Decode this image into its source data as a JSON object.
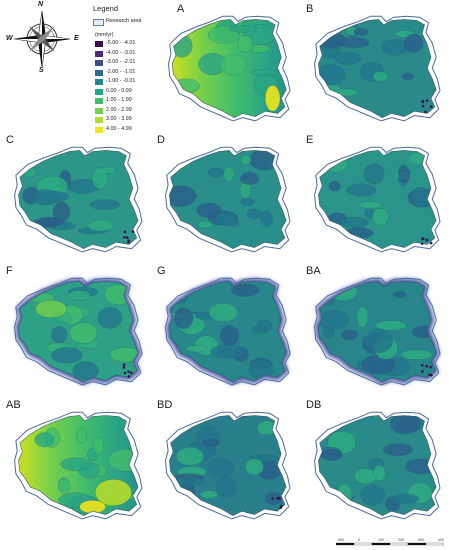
{
  "compass": {
    "n": "N",
    "s": "S",
    "e": "E",
    "w": "W"
  },
  "legend": {
    "title": "Legend",
    "research_area": "Research area",
    "unit": "(mm/yr)",
    "classes": [
      {
        "label": "-5.00 - -4.01",
        "color": "#3b0f4f"
      },
      {
        "label": "-4.00 - -3.01",
        "color": "#472a7a"
      },
      {
        "label": "-3.00 - -2.01",
        "color": "#3e4c8a"
      },
      {
        "label": "-2.00 - -1.01",
        "color": "#2f6b8e"
      },
      {
        "label": "-1.00 - -0.01",
        "color": "#22888e"
      },
      {
        "label": "0.00 - 0.99",
        "color": "#21a884"
      },
      {
        "label": "1.00 - 1.99",
        "color": "#41bd6b"
      },
      {
        "label": "2.00 - 2.99",
        "color": "#75cf4b"
      },
      {
        "label": "3.00 - 3.99",
        "color": "#b3dc2b"
      },
      {
        "label": "4.00 - 4.99",
        "color": "#f0e51c"
      }
    ]
  },
  "panels": [
    {
      "label": "A",
      "fill": "#2e9c84",
      "style": "gradientA"
    },
    {
      "label": "B",
      "fill": "#2a8a8a",
      "style": "plain"
    },
    {
      "label": "C",
      "fill": "#2c9688",
      "style": "plain"
    },
    {
      "label": "D",
      "fill": "#2a8e8a",
      "style": "plain"
    },
    {
      "label": "E",
      "fill": "#2a938a",
      "style": "plain"
    },
    {
      "label": "F",
      "fill": "#2da086",
      "style": "glowF"
    },
    {
      "label": "G",
      "fill": "#28878b",
      "style": "glow"
    },
    {
      "label": "BA",
      "fill": "#27858b",
      "style": "glow"
    },
    {
      "label": "AB",
      "fill": "#2e9c84",
      "style": "gradientAB"
    },
    {
      "label": "BD",
      "fill": "#2a7f8c",
      "style": "plain"
    },
    {
      "label": "DB",
      "fill": "#2a8a8a",
      "style": "plain"
    }
  ],
  "scale": {
    "ticks": [
      "300",
      "0",
      "100",
      "200",
      "300",
      "400 km"
    ]
  }
}
